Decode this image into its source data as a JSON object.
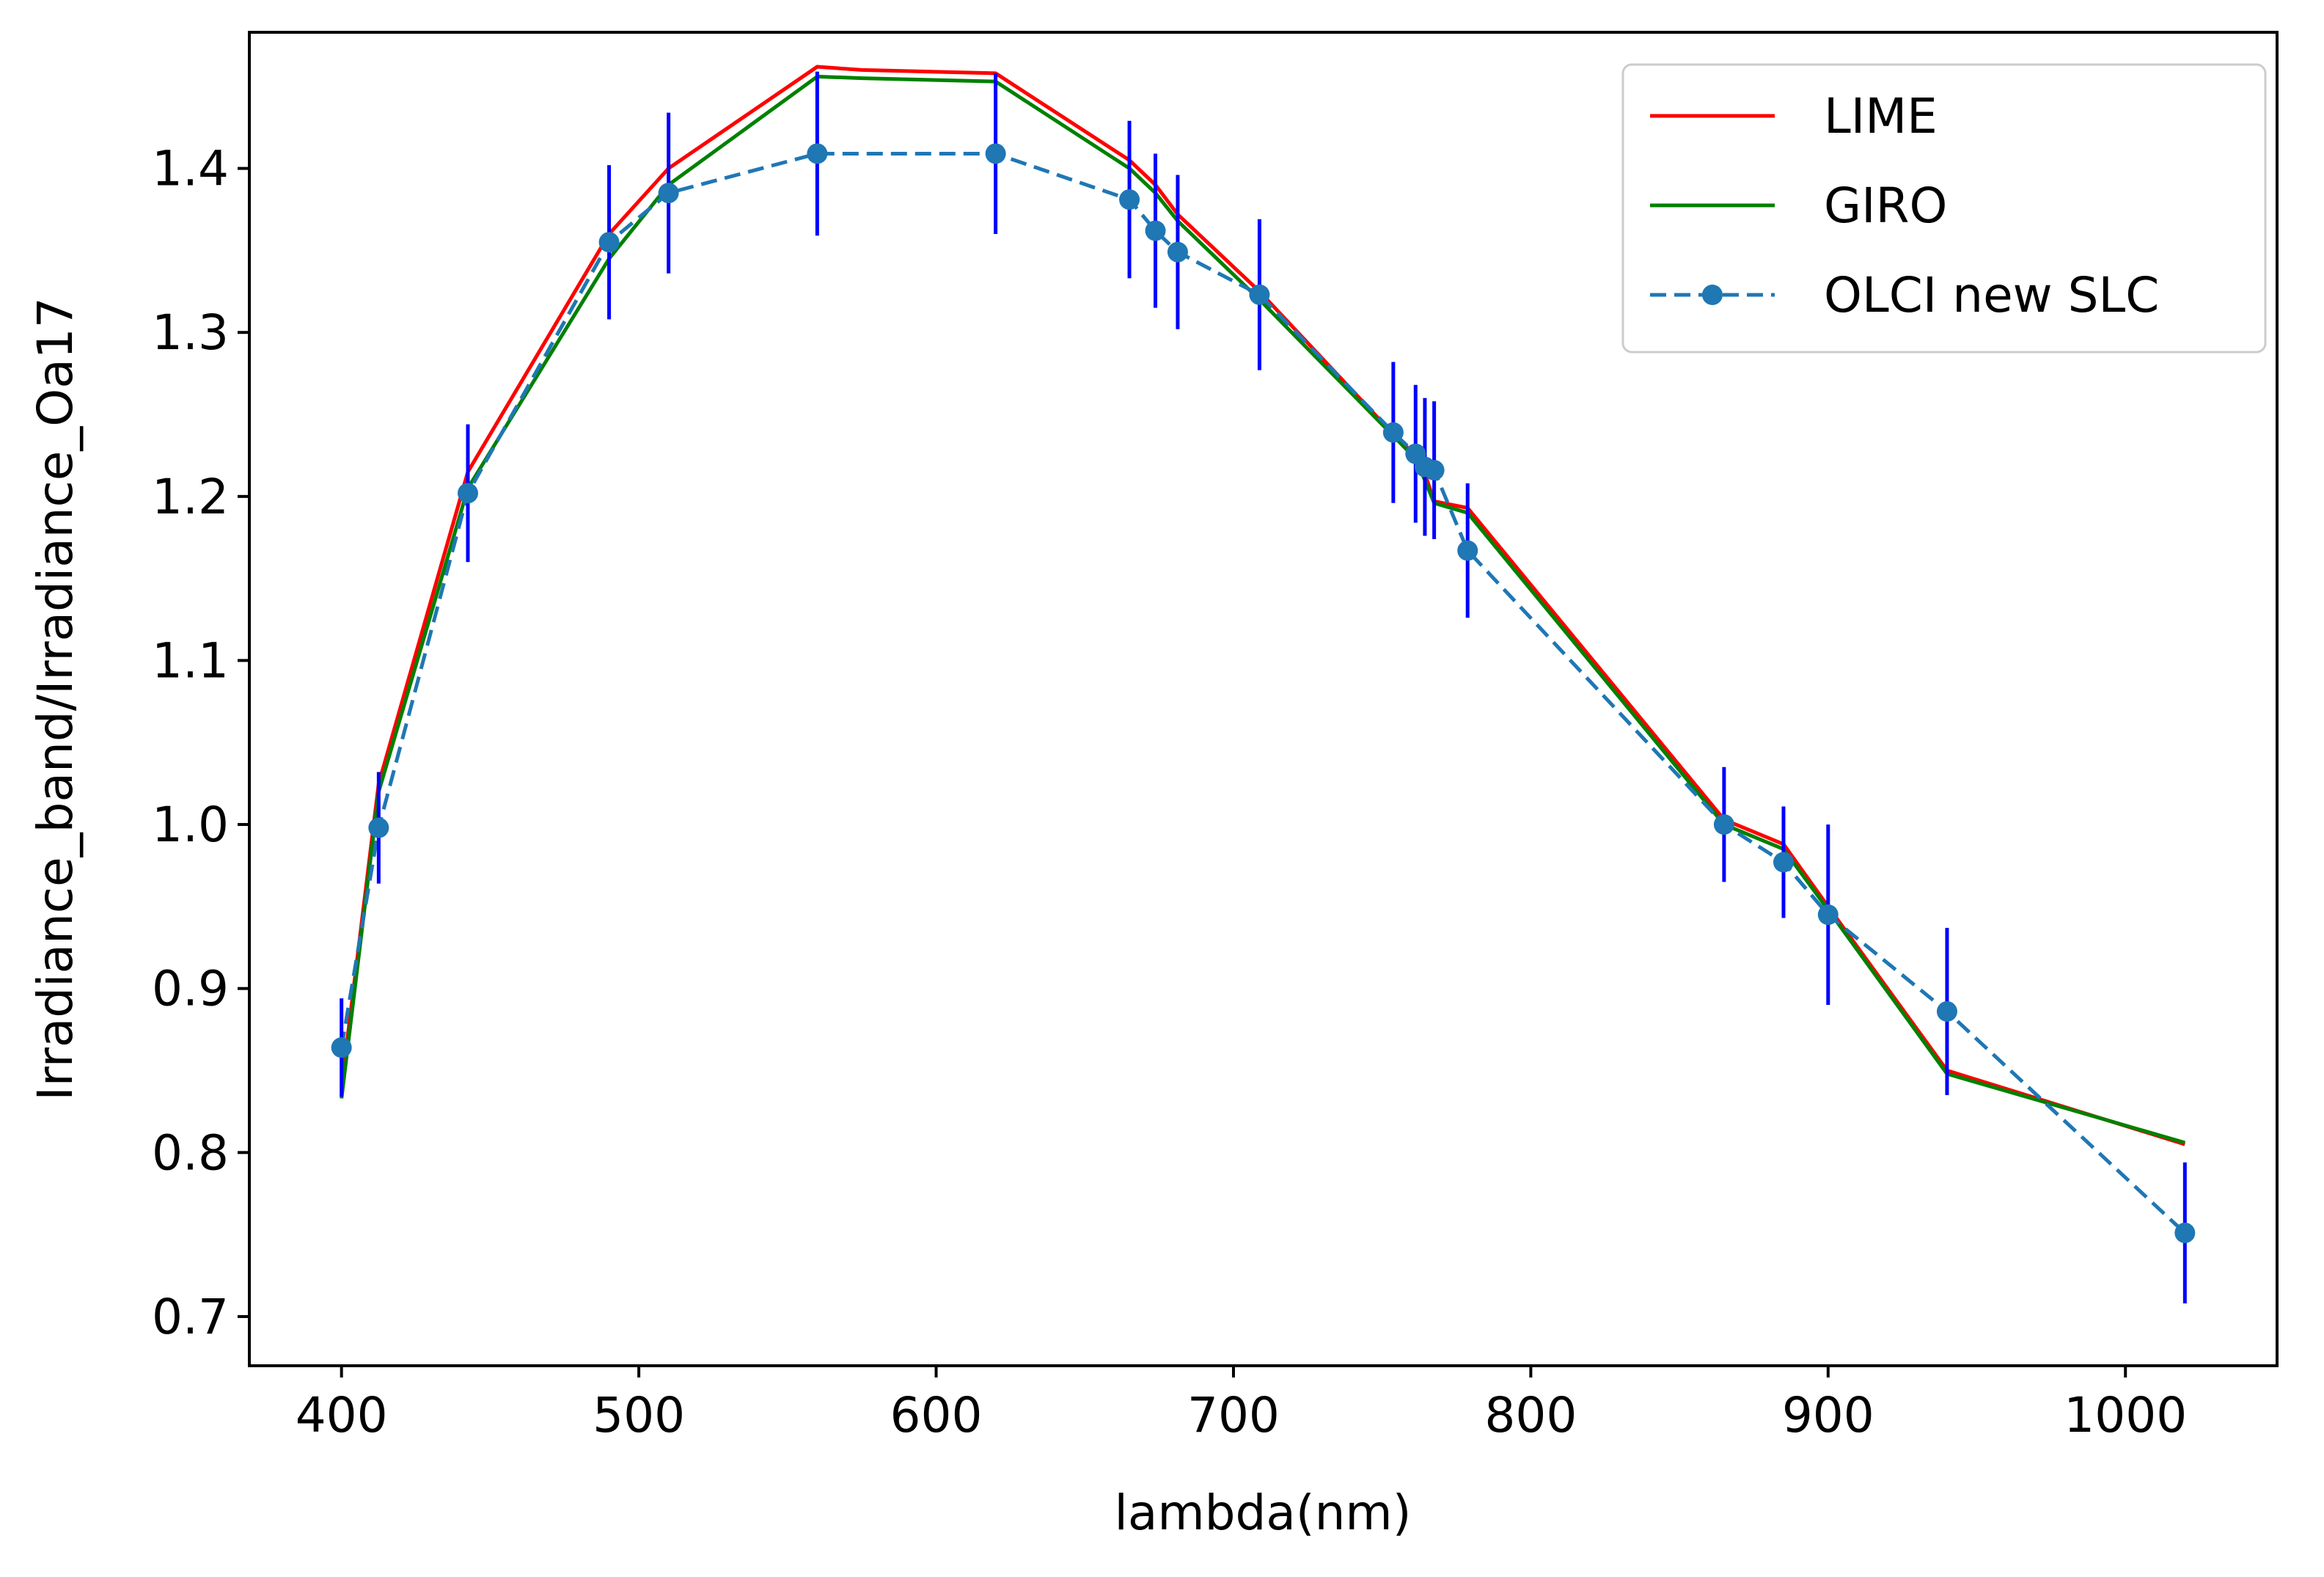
{
  "chart_data": {
    "type": "line",
    "title": "",
    "xlabel": "lambda(nm)",
    "ylabel": "Irradiance_band/Irradiance_Oa17",
    "xlim": [
      369,
      1051
    ],
    "ylim": [
      0.67,
      1.483
    ],
    "xticks": [
      400,
      500,
      600,
      700,
      800,
      900,
      1000
    ],
    "xtick_labels": [
      "400",
      "500",
      "600",
      "700",
      "800",
      "900",
      "1000"
    ],
    "yticks": [
      0.7,
      0.8,
      0.9,
      1.0,
      1.1,
      1.2,
      1.3,
      1.4
    ],
    "ytick_labels": [
      "0.7",
      "0.8",
      "0.9",
      "1.0",
      "1.1",
      "1.2",
      "1.3",
      "1.4"
    ],
    "legend_position": "upper right",
    "series": [
      {
        "name": "LIME",
        "color": "#ff0000",
        "style": "solid",
        "x": [
          400,
          412.5,
          442.5,
          490,
          510,
          560,
          575,
          620,
          665,
          673.75,
          681.25,
          708.75,
          753.75,
          761.25,
          764.375,
          767.5,
          778.75,
          865,
          885,
          900,
          940,
          1020
        ],
        "y": [
          0.84,
          1.025,
          1.215,
          1.36,
          1.4,
          1.462,
          1.46,
          1.458,
          1.405,
          1.39,
          1.372,
          1.325,
          1.238,
          1.225,
          1.214,
          1.197,
          1.193,
          1.003,
          0.988,
          0.95,
          0.85,
          0.805
        ]
      },
      {
        "name": "GIRO",
        "color": "#008000",
        "style": "solid",
        "x": [
          400,
          412.5,
          442.5,
          490,
          510,
          560,
          575,
          620,
          665,
          673.75,
          681.25,
          708.75,
          753.75,
          761.25,
          764.375,
          767.5,
          778.75,
          865,
          885,
          900,
          940,
          1020
        ],
        "y": [
          0.833,
          1.02,
          1.205,
          1.345,
          1.39,
          1.456,
          1.455,
          1.453,
          1.4,
          1.385,
          1.368,
          1.32,
          1.237,
          1.223,
          1.21,
          1.196,
          1.19,
          1.0,
          0.985,
          0.948,
          0.848,
          0.806
        ]
      },
      {
        "name": "OLCI new SLC",
        "color": "#1f77b4",
        "style": "dashed",
        "marker": "circle",
        "error_color": "#0000ff",
        "x": [
          400,
          412.5,
          442.5,
          490,
          510,
          560,
          620,
          665,
          673.75,
          681.25,
          708.75,
          753.75,
          761.25,
          764.375,
          767.5,
          778.75,
          865,
          885,
          900,
          940,
          1020
        ],
        "y": [
          0.864,
          0.998,
          1.202,
          1.355,
          1.385,
          1.409,
          1.409,
          1.381,
          1.362,
          1.349,
          1.323,
          1.239,
          1.226,
          1.218,
          1.216,
          1.167,
          1.0,
          0.977,
          0.945,
          0.886,
          0.751
        ],
        "yerr": [
          0.03,
          0.034,
          0.042,
          0.047,
          0.049,
          0.05,
          0.049,
          0.048,
          0.047,
          0.047,
          0.046,
          0.043,
          0.042,
          0.042,
          0.042,
          0.041,
          0.035,
          0.034,
          0.055,
          0.051,
          0.043
        ]
      }
    ]
  }
}
